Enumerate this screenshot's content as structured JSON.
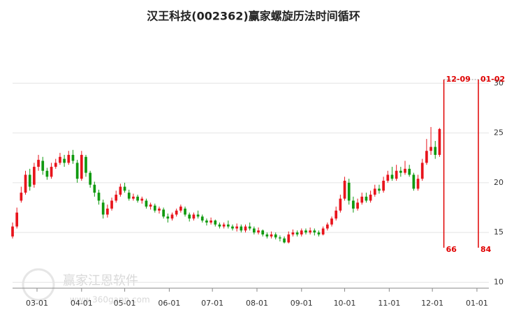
{
  "chart_data": {
    "type": "candlestick",
    "title": "汉王科技(002362)赢家螺旋历法时间循环",
    "watermark": [
      "赢家江恩软件",
      "www.360gann.com"
    ],
    "up_color": "#e8141c",
    "down_color": "#109a10",
    "grid": true,
    "xlim": [
      42,
      383
    ],
    "xticks": [
      {
        "value": 59,
        "label": "03-01"
      },
      {
        "value": 90,
        "label": "04-01"
      },
      {
        "value": 120,
        "label": "05-01"
      },
      {
        "value": 151,
        "label": "06-01"
      },
      {
        "value": 181,
        "label": "07-01"
      },
      {
        "value": 212,
        "label": "08-01"
      },
      {
        "value": 243,
        "label": "09-01"
      },
      {
        "value": 273,
        "label": "10-01"
      },
      {
        "value": 304,
        "label": "11-01"
      },
      {
        "value": 334,
        "label": "12-01"
      },
      {
        "value": 365,
        "label": "01-01"
      }
    ],
    "ylim": [
      9.4,
      35
    ],
    "yticks": [
      10,
      15,
      20,
      25,
      30
    ],
    "cycles": [
      {
        "x": 342,
        "label": "12-09",
        "count": 66
      },
      {
        "x": 366,
        "label": "01-02",
        "count": 84
      }
    ],
    "x": [
      42,
      45,
      48,
      51,
      54,
      57,
      60,
      63,
      66,
      69,
      72,
      75,
      78,
      81,
      84,
      87,
      90,
      93,
      96,
      99,
      102,
      105,
      108,
      111,
      114,
      117,
      120,
      123,
      126,
      129,
      132,
      135,
      138,
      141,
      144,
      147,
      150,
      153,
      156,
      159,
      162,
      165,
      168,
      171,
      174,
      177,
      180,
      183,
      186,
      189,
      192,
      195,
      198,
      201,
      204,
      207,
      210,
      213,
      216,
      219,
      222,
      225,
      228,
      231,
      234,
      237,
      240,
      243,
      246,
      249,
      252,
      255,
      258,
      261,
      264,
      267,
      270,
      273,
      276,
      279,
      282,
      285,
      288,
      291,
      294,
      297,
      300,
      303,
      306,
      309,
      312,
      315,
      318,
      321,
      324,
      327,
      330,
      333,
      336,
      339
    ],
    "open": [
      14.6,
      15.6,
      18.2,
      19.0,
      20.8,
      19.8,
      21.6,
      22.2,
      21.2,
      20.6,
      21.6,
      22.0,
      22.4,
      22.0,
      22.8,
      22.0,
      20.4,
      22.6,
      21.0,
      19.8,
      19.0,
      18.0,
      16.8,
      17.4,
      18.2,
      18.8,
      19.6,
      19.0,
      18.4,
      18.6,
      18.2,
      18.2,
      17.6,
      17.7,
      17.2,
      17.3,
      16.6,
      16.4,
      16.8,
      17.2,
      17.4,
      16.8,
      16.4,
      16.8,
      16.6,
      16.2,
      16.0,
      16.2,
      15.8,
      15.6,
      15.8,
      15.6,
      15.4,
      15.6,
      15.2,
      15.6,
      15.4,
      15.0,
      15.2,
      14.8,
      14.6,
      14.8,
      14.5,
      14.4,
      14.0,
      14.8,
      15.0,
      14.8,
      15.2,
      15.0,
      15.2,
      15.0,
      14.8,
      15.4,
      15.8,
      16.4,
      17.2,
      18.4,
      20.0,
      18.2,
      17.4,
      18.0,
      18.6,
      18.2,
      18.8,
      19.4,
      19.2,
      20.2,
      20.8,
      20.4,
      21.2,
      21.0,
      21.4,
      20.8,
      19.4,
      20.4,
      22.0,
      23.2,
      23.6,
      22.8
    ],
    "close": [
      15.6,
      17.0,
      19.0,
      20.8,
      19.6,
      21.6,
      22.3,
      21.2,
      20.6,
      21.6,
      22.0,
      22.6,
      22.0,
      22.8,
      22.2,
      20.4,
      22.8,
      21.0,
      19.8,
      19.0,
      18.2,
      16.8,
      17.4,
      18.2,
      18.8,
      19.6,
      19.2,
      18.4,
      18.6,
      18.2,
      18.4,
      17.6,
      17.8,
      17.2,
      17.4,
      16.6,
      16.4,
      16.8,
      17.2,
      17.6,
      16.8,
      16.4,
      16.8,
      16.6,
      16.2,
      16.0,
      16.2,
      15.8,
      15.6,
      15.8,
      15.6,
      15.4,
      15.6,
      15.2,
      15.6,
      15.4,
      15.0,
      15.2,
      14.8,
      14.6,
      14.8,
      14.5,
      14.4,
      14.0,
      14.8,
      15.0,
      14.8,
      15.2,
      15.0,
      15.2,
      15.0,
      14.8,
      15.4,
      15.8,
      16.4,
      17.2,
      18.4,
      20.2,
      18.2,
      17.4,
      18.0,
      18.6,
      18.2,
      18.8,
      19.4,
      19.2,
      20.2,
      20.8,
      20.4,
      21.2,
      21.0,
      21.4,
      20.8,
      19.4,
      20.4,
      22.0,
      23.2,
      23.6,
      22.8,
      25.4
    ],
    "high": [
      16.0,
      17.5,
      19.6,
      21.2,
      21.4,
      22.0,
      22.8,
      22.6,
      21.5,
      22.0,
      22.4,
      23.0,
      22.8,
      23.2,
      23.3,
      22.3,
      23.2,
      22.8,
      21.2,
      20.1,
      19.3,
      18.3,
      17.8,
      18.5,
      19.2,
      19.9,
      20.0,
      19.3,
      18.9,
      18.8,
      18.6,
      18.4,
      18.0,
      17.9,
      17.6,
      17.5,
      16.9,
      17.0,
      17.4,
      17.8,
      17.6,
      17.0,
      17.0,
      17.2,
      16.8,
      16.4,
      16.5,
      16.3,
      16.0,
      16.0,
      16.2,
      15.8,
      15.9,
      15.8,
      15.8,
      16.0,
      15.6,
      15.5,
      15.3,
      15.0,
      15.1,
      15.0,
      14.7,
      14.6,
      15.1,
      15.3,
      15.2,
      15.4,
      15.4,
      15.5,
      15.4,
      15.2,
      15.6,
      16.0,
      16.6,
      17.6,
      18.8,
      20.6,
      20.4,
      18.6,
      18.4,
      19.0,
      19.0,
      19.2,
      19.8,
      19.8,
      20.6,
      21.2,
      21.6,
      21.8,
      21.6,
      22.2,
      21.8,
      21.0,
      20.8,
      22.4,
      24.4,
      25.6,
      24.2,
      25.5
    ],
    "low": [
      14.4,
      15.4,
      18.0,
      18.8,
      19.2,
      19.5,
      21.2,
      20.8,
      20.3,
      20.4,
      21.4,
      21.8,
      21.6,
      21.8,
      21.9,
      20.0,
      20.2,
      20.6,
      19.5,
      18.6,
      17.8,
      16.4,
      16.5,
      17.2,
      18.0,
      18.6,
      19.0,
      18.2,
      18.2,
      18.0,
      17.9,
      17.4,
      17.3,
      17.0,
      16.9,
      16.4,
      16.0,
      16.2,
      16.6,
      17.0,
      16.6,
      16.1,
      16.2,
      16.4,
      16.0,
      15.7,
      15.8,
      15.6,
      15.4,
      15.4,
      15.4,
      15.2,
      15.1,
      15.0,
      15.0,
      15.2,
      14.8,
      14.8,
      14.6,
      14.4,
      14.4,
      14.3,
      14.1,
      13.9,
      13.9,
      14.6,
      14.6,
      14.6,
      14.8,
      14.8,
      14.7,
      14.6,
      14.7,
      15.2,
      15.6,
      16.2,
      17.0,
      18.2,
      17.8,
      17.0,
      17.2,
      17.8,
      18.0,
      18.0,
      18.6,
      18.9,
      19.0,
      20.0,
      20.2,
      20.2,
      20.6,
      20.8,
      20.6,
      19.2,
      19.2,
      20.2,
      21.8,
      22.8,
      22.4,
      22.6
    ]
  }
}
